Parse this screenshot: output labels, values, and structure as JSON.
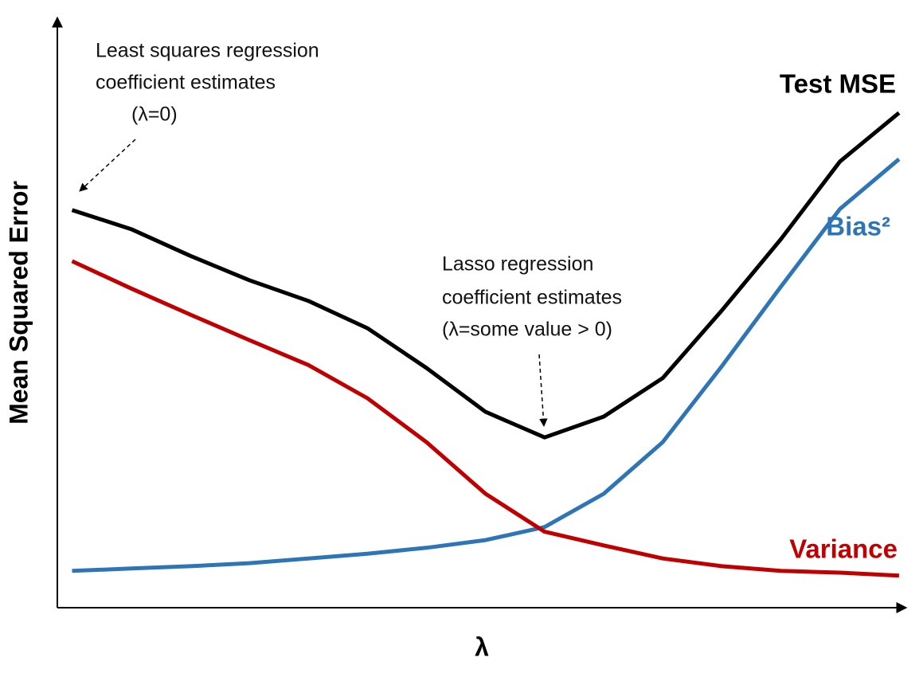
{
  "chart_data": {
    "type": "line",
    "x_label": "λ",
    "y_label": "Mean Squared Error",
    "x": [
      0,
      1,
      2,
      3,
      4,
      5,
      6,
      7,
      8,
      9,
      10,
      11,
      12,
      13,
      14
    ],
    "xlim": [
      -0.25,
      14.15
    ],
    "ylim": [
      0,
      100
    ],
    "series": [
      {
        "name": "Test MSE",
        "color": "#000000",
        "values": [
          67.0,
          63.8,
          59.3,
          55.2,
          51.7,
          47.1,
          40.4,
          33.0,
          28.7,
          32.2,
          38.7,
          50.1,
          62.1,
          75.2,
          83.4
        ]
      },
      {
        "name": "Bias²",
        "color": "#2e75b6",
        "values": [
          6.2,
          6.6,
          7.0,
          7.5,
          8.3,
          9.1,
          10.1,
          11.4,
          13.6,
          19.2,
          27.9,
          40.7,
          54.1,
          67.2,
          75.6
        ]
      },
      {
        "name": "Variance",
        "color": "#c00000",
        "values": [
          58.4,
          53.8,
          49.4,
          45.1,
          40.9,
          35.3,
          27.9,
          19.2,
          12.8,
          10.5,
          8.3,
          7.0,
          6.2,
          5.9,
          5.4
        ]
      }
    ],
    "annotations": [
      {
        "lines": [
          "Least squares regression",
          "coefficient estimates",
          "(λ=0)"
        ]
      },
      {
        "lines": [
          "Lasso regression",
          "coefficient estimates",
          "(λ=some value > 0)"
        ]
      }
    ]
  }
}
